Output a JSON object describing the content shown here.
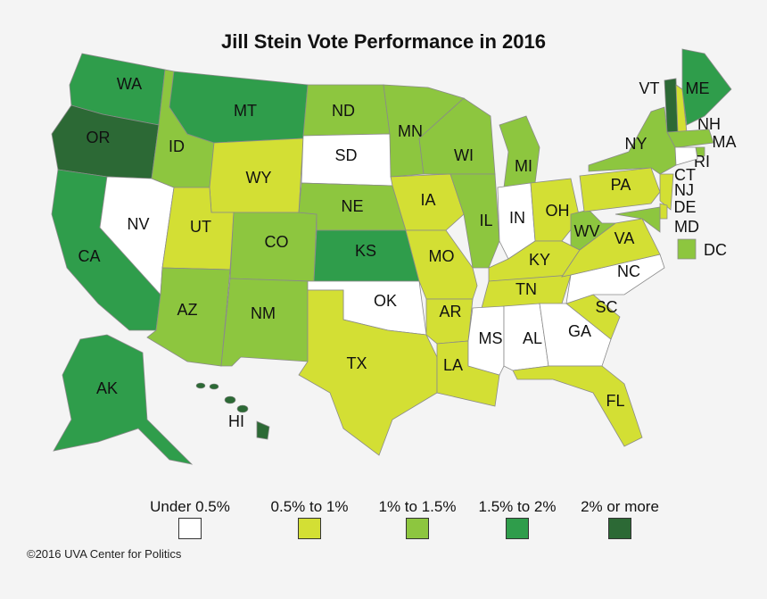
{
  "title": "Jill Stein Vote Performance in 2016",
  "credit": "©2016 UVA Center for Politics",
  "legend": [
    {
      "label": "Under 0.5%",
      "color": "#ffffff"
    },
    {
      "label": "0.5% to 1%",
      "color": "#d3df34"
    },
    {
      "label": "1% to 1.5%",
      "color": "#8dc63f"
    },
    {
      "label": "1.5% to 2%",
      "color": "#2f9d4b"
    },
    {
      "label": "2% or more",
      "color": "#2c6935"
    }
  ],
  "states": [
    {
      "label": "WA",
      "color": "#2f9d4b"
    },
    {
      "label": "OR",
      "color": "#2c6935"
    },
    {
      "label": "CA",
      "color": "#2f9d4b"
    },
    {
      "label": "NV",
      "color": "#ffffff"
    },
    {
      "label": "ID",
      "color": "#8dc63f"
    },
    {
      "label": "MT",
      "color": "#2f9d4b"
    },
    {
      "label": "WY",
      "color": "#d3df34"
    },
    {
      "label": "UT",
      "color": "#d3df34"
    },
    {
      "label": "AZ",
      "color": "#8dc63f"
    },
    {
      "label": "CO",
      "color": "#8dc63f"
    },
    {
      "label": "NM",
      "color": "#8dc63f"
    },
    {
      "label": "ND",
      "color": "#8dc63f"
    },
    {
      "label": "SD",
      "color": "#ffffff"
    },
    {
      "label": "NE",
      "color": "#8dc63f"
    },
    {
      "label": "KS",
      "color": "#2f9d4b"
    },
    {
      "label": "OK",
      "color": "#ffffff"
    },
    {
      "label": "TX",
      "color": "#d3df34"
    },
    {
      "label": "MN",
      "color": "#8dc63f"
    },
    {
      "label": "IA",
      "color": "#d3df34"
    },
    {
      "label": "MO",
      "color": "#d3df34"
    },
    {
      "label": "AR",
      "color": "#d3df34"
    },
    {
      "label": "LA",
      "color": "#d3df34"
    },
    {
      "label": "WI",
      "color": "#8dc63f"
    },
    {
      "label": "IL",
      "color": "#8dc63f"
    },
    {
      "label": "MI",
      "color": "#8dc63f"
    },
    {
      "label": "IN",
      "color": "#ffffff"
    },
    {
      "label": "OH",
      "color": "#d3df34"
    },
    {
      "label": "KY",
      "color": "#d3df34"
    },
    {
      "label": "TN",
      "color": "#d3df34"
    },
    {
      "label": "MS",
      "color": "#ffffff"
    },
    {
      "label": "AL",
      "color": "#ffffff"
    },
    {
      "label": "GA",
      "color": "#ffffff"
    },
    {
      "label": "FL",
      "color": "#d3df34"
    },
    {
      "label": "SC",
      "color": "#d3df34"
    },
    {
      "label": "NC",
      "color": "#ffffff"
    },
    {
      "label": "VA",
      "color": "#d3df34"
    },
    {
      "label": "WV",
      "color": "#8dc63f"
    },
    {
      "label": "PA",
      "color": "#d3df34"
    },
    {
      "label": "NY",
      "color": "#8dc63f"
    },
    {
      "label": "VT",
      "color": "#2c6935"
    },
    {
      "label": "NH",
      "color": "#d3df34"
    },
    {
      "label": "ME",
      "color": "#2f9d4b"
    },
    {
      "label": "MA",
      "color": "#8dc63f"
    },
    {
      "label": "RI",
      "color": "#8dc63f"
    },
    {
      "label": "CT",
      "color": "#ffffff"
    },
    {
      "label": "NJ",
      "color": "#d3df34"
    },
    {
      "label": "DE",
      "color": "#d3df34"
    },
    {
      "label": "MD",
      "color": "#8dc63f"
    },
    {
      "label": "DC",
      "color": "#8dc63f"
    },
    {
      "label": "AK",
      "color": "#2f9d4b"
    },
    {
      "label": "HI",
      "color": "#2c6935"
    }
  ]
}
